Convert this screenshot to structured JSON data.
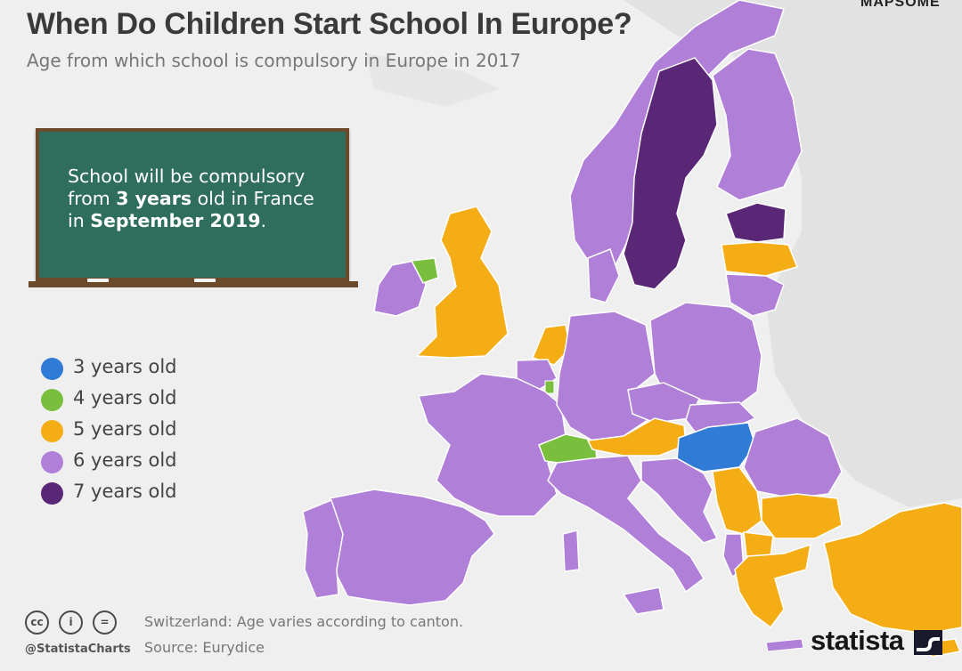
{
  "header": {
    "title": "When Do Children Start School In Europe?",
    "subtitle": "Age from which school is compulsory in Europe in 2017",
    "watermark": "MAPSOME"
  },
  "callout": {
    "line1": "School will be compulsory",
    "line2_pre": "from ",
    "line2_bold": "3 years",
    "line2_post": " old in France",
    "line3_pre": "in ",
    "line3_bold": "September 2019",
    "line3_post": "."
  },
  "legend": [
    {
      "label": "3 years old",
      "color": "#2f7bd6"
    },
    {
      "label": "4 years old",
      "color": "#79be3c"
    },
    {
      "label": "5 years old",
      "color": "#f5ad16"
    },
    {
      "label": "6 years old",
      "color": "#b07fd8"
    },
    {
      "label": "7 years old",
      "color": "#5a2676"
    }
  ],
  "map": {
    "background_land": "#e2e2e2",
    "border_color": "#ffffff",
    "regions": [
      {
        "name": "Sweden",
        "age": 7
      },
      {
        "name": "Estonia",
        "age": 7
      },
      {
        "name": "Norway",
        "age": 6
      },
      {
        "name": "Finland",
        "age": 6
      },
      {
        "name": "Latvia",
        "age": 5
      },
      {
        "name": "Lithuania",
        "age": 6
      },
      {
        "name": "Denmark",
        "age": 6
      },
      {
        "name": "Ireland",
        "age": 6
      },
      {
        "name": "Northern Ireland",
        "age": 4
      },
      {
        "name": "United Kingdom",
        "age": 5
      },
      {
        "name": "Netherlands",
        "age": 5
      },
      {
        "name": "Belgium",
        "age": 6
      },
      {
        "name": "Luxembourg",
        "age": 4
      },
      {
        "name": "France",
        "age": 6
      },
      {
        "name": "Spain",
        "age": 6
      },
      {
        "name": "Portugal",
        "age": 6
      },
      {
        "name": "Germany",
        "age": 6
      },
      {
        "name": "Poland",
        "age": 6
      },
      {
        "name": "Czechia",
        "age": 6
      },
      {
        "name": "Slovakia",
        "age": 6
      },
      {
        "name": "Switzerland",
        "age": 4
      },
      {
        "name": "Austria",
        "age": 5
      },
      {
        "name": "Hungary",
        "age": 3
      },
      {
        "name": "Italy",
        "age": 6
      },
      {
        "name": "Slovenia",
        "age": 6
      },
      {
        "name": "Croatia",
        "age": 6
      },
      {
        "name": "Bosnia",
        "age": 6
      },
      {
        "name": "Serbia",
        "age": 5
      },
      {
        "name": "Montenegro",
        "age": 6
      },
      {
        "name": "Albania",
        "age": 6
      },
      {
        "name": "North Macedonia",
        "age": 5
      },
      {
        "name": "Romania",
        "age": 6
      },
      {
        "name": "Bulgaria",
        "age": 5
      },
      {
        "name": "Greece",
        "age": 5
      },
      {
        "name": "Turkey",
        "age": 5
      },
      {
        "name": "Cyprus",
        "age": 5
      }
    ]
  },
  "footer": {
    "cc_icons": [
      "cc-icon",
      "by-icon",
      "nd-icon"
    ],
    "cc_text": "cc",
    "by_text": "i",
    "nd_text": "=",
    "handle": "@StatistaCharts",
    "note": "Switzerland: Age varies according to canton.",
    "source": "Source: Eurydice",
    "brand": "statista"
  }
}
